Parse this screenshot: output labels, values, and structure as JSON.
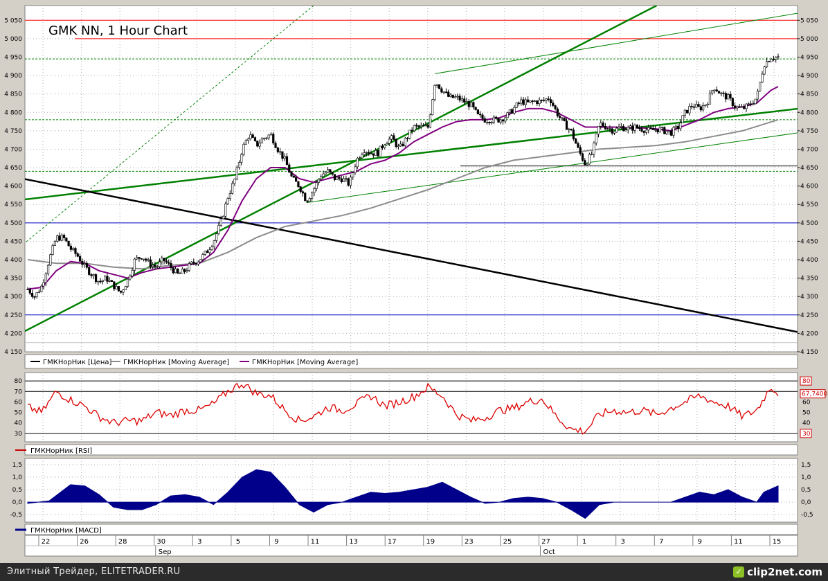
{
  "chart_data": [
    {
      "type": "candlestick",
      "title": "GMK NN, 1 Hour Chart",
      "y_ticks": [
        4150,
        4200,
        4250,
        4300,
        4350,
        4400,
        4450,
        4500,
        4550,
        4600,
        4650,
        4700,
        4750,
        4800,
        4850,
        4900,
        4950,
        5000,
        5050
      ],
      "y_tick_labels": [
        "4 150",
        "4 200",
        "4 250",
        "4 300",
        "4 350",
        "4 400",
        "4 450",
        "4 500",
        "4 550",
        "4 600",
        "4 650",
        "4 700",
        "4 750",
        "4 800",
        "4 850",
        "4 900",
        "4 950",
        "5 000",
        "5 050"
      ],
      "ylim": [
        4150,
        5090
      ],
      "grid": true,
      "legend": [
        {
          "label": "ГМКНорНик [Цена]",
          "color": "#000000"
        },
        {
          "label": "ГМКНорНик [Moving Average]",
          "color": "#8c8c8c"
        },
        {
          "label": "ГМКНорНик [Moving Average]",
          "color": "#800080"
        }
      ],
      "price_path": [
        [
          0,
          4320
        ],
        [
          1,
          4300
        ],
        [
          2,
          4330
        ],
        [
          3,
          4400
        ],
        [
          4,
          4460
        ],
        [
          5,
          4460
        ],
        [
          6,
          4430
        ],
        [
          7,
          4410
        ],
        [
          8,
          4380
        ],
        [
          9,
          4360
        ],
        [
          10,
          4340
        ],
        [
          11,
          4350
        ],
        [
          12,
          4330
        ],
        [
          13,
          4310
        ],
        [
          14,
          4345
        ],
        [
          15,
          4400
        ],
        [
          16,
          4410
        ],
        [
          17,
          4390
        ],
        [
          18,
          4380
        ],
        [
          19,
          4400
        ],
        [
          20,
          4380
        ],
        [
          21,
          4360
        ],
        [
          22,
          4370
        ],
        [
          23,
          4390
        ],
        [
          24,
          4400
        ],
        [
          25,
          4420
        ],
        [
          26,
          4450
        ],
        [
          27,
          4500
        ],
        [
          28,
          4570
        ],
        [
          29,
          4620
        ],
        [
          30,
          4700
        ],
        [
          31,
          4740
        ],
        [
          32,
          4710
        ],
        [
          33,
          4730
        ],
        [
          34,
          4740
        ],
        [
          35,
          4700
        ],
        [
          36,
          4670
        ],
        [
          37,
          4620
        ],
        [
          38,
          4600
        ],
        [
          39,
          4560
        ],
        [
          40,
          4590
        ],
        [
          41,
          4630
        ],
        [
          42,
          4640
        ],
        [
          43,
          4620
        ],
        [
          44,
          4620
        ],
        [
          45,
          4605
        ],
        [
          46,
          4670
        ],
        [
          47,
          4700
        ],
        [
          48,
          4690
        ],
        [
          49,
          4690
        ],
        [
          50,
          4720
        ],
        [
          51,
          4730
        ],
        [
          52,
          4700
        ],
        [
          53,
          4730
        ],
        [
          54,
          4760
        ],
        [
          55,
          4760
        ],
        [
          56,
          4760
        ],
        [
          57,
          4885
        ],
        [
          58,
          4860
        ],
        [
          59,
          4840
        ],
        [
          60,
          4840
        ],
        [
          61,
          4830
        ],
        [
          62,
          4820
        ],
        [
          63,
          4790
        ],
        [
          64,
          4780
        ],
        [
          65,
          4780
        ],
        [
          66,
          4780
        ],
        [
          67,
          4790
        ],
        [
          68,
          4810
        ],
        [
          69,
          4830
        ],
        [
          70,
          4825
        ],
        [
          71,
          4830
        ],
        [
          72,
          4830
        ],
        [
          73,
          4840
        ],
        [
          74,
          4800
        ],
        [
          75,
          4770
        ],
        [
          76,
          4750
        ],
        [
          77,
          4700
        ],
        [
          78,
          4660
        ],
        [
          79,
          4690
        ],
        [
          80,
          4770
        ],
        [
          81,
          4760
        ],
        [
          82,
          4750
        ],
        [
          83,
          4760
        ],
        [
          84,
          4755
        ],
        [
          85,
          4760
        ],
        [
          86,
          4755
        ],
        [
          87,
          4750
        ],
        [
          88,
          4755
        ],
        [
          89,
          4750
        ],
        [
          90,
          4745
        ],
        [
          91,
          4760
        ],
        [
          92,
          4800
        ],
        [
          93,
          4820
        ],
        [
          94,
          4810
        ],
        [
          95,
          4825
        ],
        [
          96,
          4870
        ],
        [
          97,
          4850
        ],
        [
          98,
          4840
        ],
        [
          99,
          4815
        ],
        [
          100,
          4810
        ],
        [
          101,
          4820
        ],
        [
          102,
          4840
        ],
        [
          103,
          4930
        ],
        [
          104,
          4950
        ],
        [
          105,
          4950
        ]
      ],
      "ma_gray": [
        [
          0,
          4400
        ],
        [
          4,
          4390
        ],
        [
          8,
          4390
        ],
        [
          12,
          4380
        ],
        [
          16,
          4375
        ],
        [
          20,
          4385
        ],
        [
          24,
          4390
        ],
        [
          28,
          4420
        ],
        [
          32,
          4460
        ],
        [
          36,
          4490
        ],
        [
          40,
          4505
        ],
        [
          44,
          4520
        ],
        [
          48,
          4540
        ],
        [
          52,
          4565
        ],
        [
          56,
          4590
        ],
        [
          60,
          4620
        ],
        [
          64,
          4650
        ],
        [
          68,
          4670
        ],
        [
          72,
          4680
        ],
        [
          76,
          4690
        ],
        [
          80,
          4700
        ],
        [
          84,
          4705
        ],
        [
          88,
          4710
        ],
        [
          92,
          4720
        ],
        [
          96,
          4735
        ],
        [
          100,
          4750
        ],
        [
          105,
          4780
        ]
      ],
      "ma_purple": [
        [
          0,
          4320
        ],
        [
          2,
          4325
        ],
        [
          4,
          4370
        ],
        [
          6,
          4395
        ],
        [
          8,
          4390
        ],
        [
          10,
          4370
        ],
        [
          12,
          4360
        ],
        [
          14,
          4350
        ],
        [
          16,
          4365
        ],
        [
          18,
          4375
        ],
        [
          20,
          4380
        ],
        [
          22,
          4385
        ],
        [
          24,
          4390
        ],
        [
          26,
          4420
        ],
        [
          28,
          4480
        ],
        [
          30,
          4560
        ],
        [
          32,
          4620
        ],
        [
          34,
          4650
        ],
        [
          36,
          4650
        ],
        [
          38,
          4620
        ],
        [
          40,
          4610
        ],
        [
          42,
          4620
        ],
        [
          44,
          4630
        ],
        [
          46,
          4640
        ],
        [
          48,
          4660
        ],
        [
          50,
          4670
        ],
        [
          52,
          4690
        ],
        [
          54,
          4720
        ],
        [
          56,
          4740
        ],
        [
          58,
          4760
        ],
        [
          60,
          4775
        ],
        [
          62,
          4780
        ],
        [
          64,
          4780
        ],
        [
          66,
          4785
        ],
        [
          68,
          4800
        ],
        [
          70,
          4810
        ],
        [
          72,
          4810
        ],
        [
          74,
          4800
        ],
        [
          76,
          4780
        ],
        [
          78,
          4760
        ],
        [
          80,
          4760
        ],
        [
          82,
          4760
        ],
        [
          84,
          4758
        ],
        [
          86,
          4758
        ],
        [
          88,
          4755
        ],
        [
          90,
          4750
        ],
        [
          92,
          4765
        ],
        [
          94,
          4780
        ],
        [
          96,
          4800
        ],
        [
          98,
          4810
        ],
        [
          100,
          4815
        ],
        [
          102,
          4825
        ],
        [
          104,
          4860
        ],
        [
          105,
          4870
        ]
      ],
      "horizontal_levels": [
        {
          "value": 5050,
          "color": "#ff0000"
        },
        {
          "value": 5000,
          "color": "#ff0000"
        },
        {
          "value": 4945,
          "color": "#008000"
        },
        {
          "value": 4780,
          "color": "#008000"
        },
        {
          "value": 4640,
          "color": "#008000"
        },
        {
          "value": 4655,
          "color": "#808080"
        },
        {
          "value": 4500,
          "color": "#0000c0"
        },
        {
          "value": 4250,
          "color": "#0000c0"
        },
        {
          "value": 4175,
          "color": "#c0c0c0"
        }
      ],
      "trend_lines": [
        {
          "from": [
            -2,
            4190
          ],
          "to": [
            88,
            5090
          ],
          "color": "#008000",
          "thick": true
        },
        {
          "from": [
            -2,
            4560
          ],
          "to": [
            110,
            4815
          ],
          "color": "#008000",
          "thick": true
        },
        {
          "from": [
            57,
            4905
          ],
          "to": [
            108,
            5070
          ],
          "color": "#008000",
          "thick": false
        },
        {
          "from": [
            39,
            4555
          ],
          "to": [
            108,
            4745
          ],
          "color": "#008000",
          "thick": false
        },
        {
          "from": [
            -2,
            4420
          ],
          "to": [
            40,
            5090
          ],
          "color": "#008000",
          "thick": false,
          "dashed": true
        },
        {
          "from": [
            -2,
            4625
          ],
          "to": [
            110,
            4195
          ],
          "color": "#000000",
          "thick": true
        }
      ]
    },
    {
      "type": "line",
      "legend": "ГМКНорНик [RSI]",
      "y_ticks": [
        30,
        40,
        50,
        60,
        70,
        80
      ],
      "levels": [
        30,
        70,
        80
      ],
      "last_value_label": "67,7400",
      "ylim": [
        22,
        88
      ],
      "series": [
        [
          0,
          55
        ],
        [
          2,
          50
        ],
        [
          4,
          70
        ],
        [
          6,
          62
        ],
        [
          8,
          56
        ],
        [
          10,
          46
        ],
        [
          12,
          40
        ],
        [
          14,
          42
        ],
        [
          16,
          42
        ],
        [
          18,
          50
        ],
        [
          20,
          47
        ],
        [
          22,
          52
        ],
        [
          24,
          52
        ],
        [
          26,
          58
        ],
        [
          28,
          70
        ],
        [
          30,
          78
        ],
        [
          32,
          68
        ],
        [
          34,
          66
        ],
        [
          36,
          52
        ],
        [
          38,
          42
        ],
        [
          40,
          46
        ],
        [
          42,
          55
        ],
        [
          44,
          52
        ],
        [
          46,
          58
        ],
        [
          48,
          66
        ],
        [
          50,
          56
        ],
        [
          52,
          60
        ],
        [
          54,
          65
        ],
        [
          56,
          74
        ],
        [
          58,
          66
        ],
        [
          60,
          48
        ],
        [
          62,
          42
        ],
        [
          64,
          45
        ],
        [
          66,
          52
        ],
        [
          68,
          54
        ],
        [
          70,
          60
        ],
        [
          72,
          63
        ],
        [
          74,
          46
        ],
        [
          76,
          34
        ],
        [
          78,
          32
        ],
        [
          80,
          48
        ],
        [
          82,
          52
        ],
        [
          84,
          50
        ],
        [
          86,
          52
        ],
        [
          88,
          48
        ],
        [
          90,
          54
        ],
        [
          92,
          60
        ],
        [
          94,
          66
        ],
        [
          96,
          60
        ],
        [
          98,
          56
        ],
        [
          100,
          46
        ],
        [
          102,
          52
        ],
        [
          104,
          75
        ],
        [
          105,
          67.74
        ]
      ]
    },
    {
      "type": "area",
      "legend": "ГМКНорНик [MACD]",
      "y_ticks": [
        -0.5,
        0.0,
        0.5,
        1.0,
        1.5
      ],
      "y_tick_labels": [
        "-0,5",
        "0,0",
        "0,5",
        "1,0",
        "1,5"
      ],
      "ylim": [
        -0.8,
        1.75
      ],
      "series": [
        [
          0,
          -0.05
        ],
        [
          3,
          0.05
        ],
        [
          6,
          0.7
        ],
        [
          8,
          0.65
        ],
        [
          10,
          0.3
        ],
        [
          12,
          -0.2
        ],
        [
          14,
          -0.3
        ],
        [
          16,
          -0.3
        ],
        [
          18,
          -0.1
        ],
        [
          20,
          0.25
        ],
        [
          22,
          0.3
        ],
        [
          24,
          0.2
        ],
        [
          26,
          -0.1
        ],
        [
          28,
          0.4
        ],
        [
          30,
          1.0
        ],
        [
          32,
          1.3
        ],
        [
          34,
          1.2
        ],
        [
          36,
          0.6
        ],
        [
          38,
          -0.1
        ],
        [
          40,
          -0.4
        ],
        [
          42,
          -0.1
        ],
        [
          44,
          0.0
        ],
        [
          46,
          0.2
        ],
        [
          48,
          0.4
        ],
        [
          50,
          0.35
        ],
        [
          52,
          0.4
        ],
        [
          54,
          0.5
        ],
        [
          56,
          0.6
        ],
        [
          58,
          0.8
        ],
        [
          60,
          0.5
        ],
        [
          62,
          0.2
        ],
        [
          64,
          -0.05
        ],
        [
          66,
          0.0
        ],
        [
          68,
          0.15
        ],
        [
          70,
          0.2
        ],
        [
          72,
          0.15
        ],
        [
          74,
          0.0
        ],
        [
          76,
          -0.3
        ],
        [
          78,
          -0.65
        ],
        [
          80,
          -0.1
        ],
        [
          82,
          0.0
        ],
        [
          84,
          0.0
        ],
        [
          86,
          0.0
        ],
        [
          88,
          0.0
        ],
        [
          90,
          0.0
        ],
        [
          92,
          0.2
        ],
        [
          94,
          0.4
        ],
        [
          96,
          0.3
        ],
        [
          98,
          0.5
        ],
        [
          100,
          0.2
        ],
        [
          102,
          0.0
        ],
        [
          103,
          0.4
        ],
        [
          105,
          0.65
        ]
      ]
    }
  ],
  "x_axis": {
    "day_ticks": [
      "22",
      "26",
      "28",
      "30",
      "3",
      "5",
      "9",
      "11",
      "13",
      "17",
      "19",
      "23",
      "25",
      "27",
      "1",
      "3",
      "7",
      "9",
      "11",
      "15"
    ],
    "months": [
      {
        "label": "Sep",
        "after_tick": 3
      },
      {
        "label": "Oct",
        "after_tick": 13
      }
    ]
  },
  "footer": {
    "credit": "Элитный Трейдер, ELITETRADER.RU",
    "logo_text": "clip2net.com",
    "logo_icon": "clip2net-logo-icon"
  }
}
